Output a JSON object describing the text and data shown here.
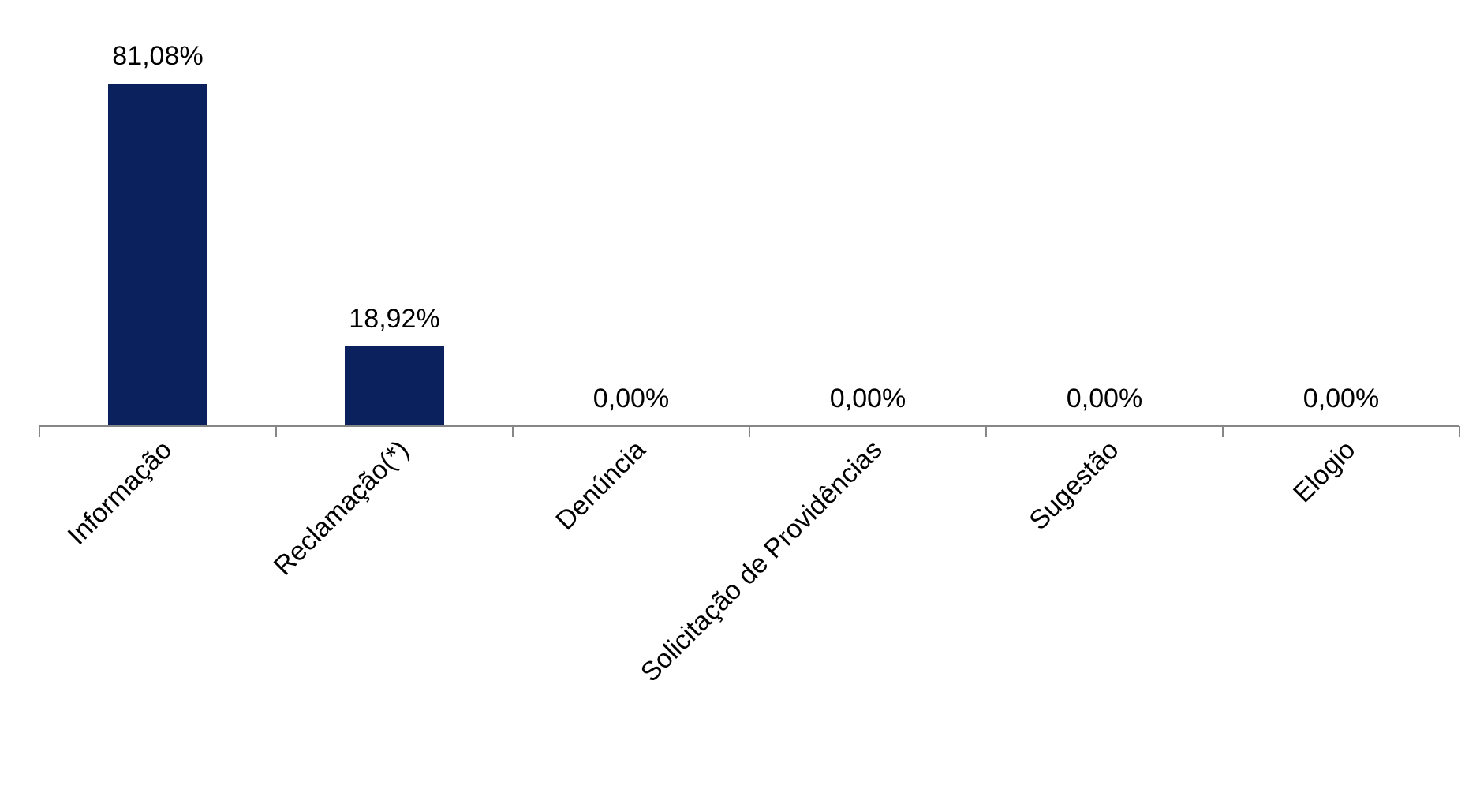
{
  "chart_data": {
    "type": "bar",
    "categories": [
      "Informação",
      "Reclamação(*)",
      "Denúncia",
      "Solicitação de Providências",
      "Sugestão",
      "Elogio"
    ],
    "values": [
      81.08,
      18.92,
      0,
      0,
      0,
      0
    ],
    "color": "#0b215e",
    "value_labels": [
      "81,08%",
      "18,92%",
      "0,00%",
      "0,00%",
      "0,00%",
      "0,00%"
    ]
  }
}
